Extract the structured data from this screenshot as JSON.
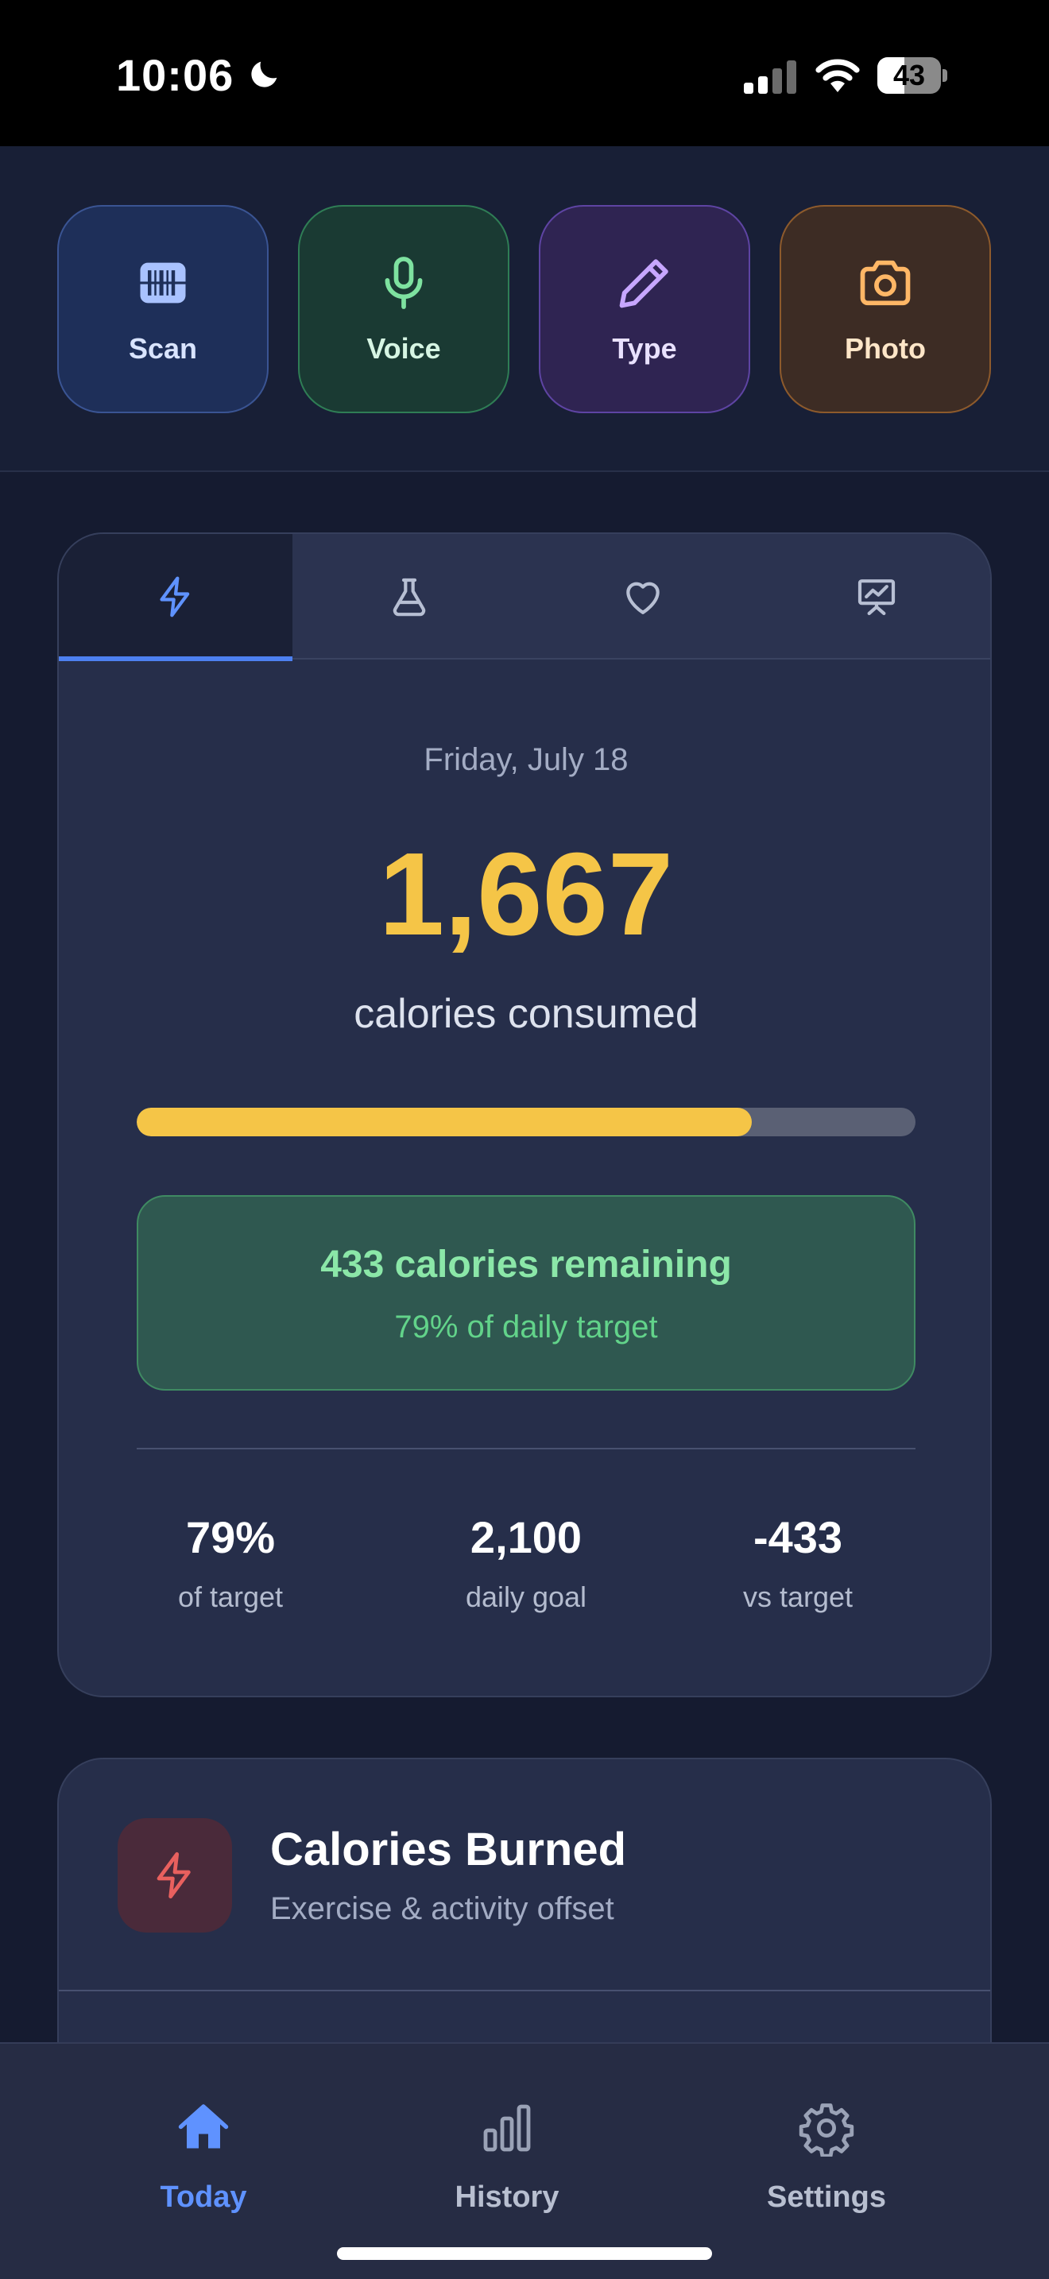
{
  "status_bar": {
    "time": "10:06",
    "battery_level": "43",
    "icons": [
      "moon-icon",
      "signal-icon",
      "wifi-icon",
      "battery-icon"
    ]
  },
  "quick_actions": [
    {
      "label": "Scan",
      "icon": "barcode-scan-icon"
    },
    {
      "label": "Voice",
      "icon": "microphone-icon"
    },
    {
      "label": "Type",
      "icon": "pencil-icon"
    },
    {
      "label": "Photo",
      "icon": "camera-icon"
    }
  ],
  "tabs": [
    {
      "icon": "lightning-icon",
      "active": true
    },
    {
      "icon": "flask-icon",
      "active": false
    },
    {
      "icon": "heart-icon",
      "active": false
    },
    {
      "icon": "chart-presentation-icon",
      "active": false
    }
  ],
  "summary": {
    "date": "Friday, July 18",
    "calories": "1,667",
    "calories_unit": "calories consumed",
    "progress_fraction": 0.79,
    "remaining_text": "433 calories remaining",
    "remaining_sub": "79% of daily target",
    "stats": [
      {
        "value": "79%",
        "label": "of target"
      },
      {
        "value": "2,100",
        "label": "daily goal"
      },
      {
        "value": "-433",
        "label": "vs target"
      }
    ]
  },
  "burned": {
    "title": "Calories Burned",
    "subtitle": "Exercise & activity offset",
    "icon": "lightning-icon"
  },
  "nav": [
    {
      "label": "Today",
      "icon": "home-icon",
      "active": true
    },
    {
      "label": "History",
      "icon": "bar-chart-icon",
      "active": false
    },
    {
      "label": "Settings",
      "icon": "gear-icon",
      "active": false
    }
  ],
  "colors": {
    "accent_blue": "#4d80f0",
    "calorie_yellow": "#f5c547",
    "remaining_green": "#8be7a8",
    "burn_red": "#e8605e"
  }
}
